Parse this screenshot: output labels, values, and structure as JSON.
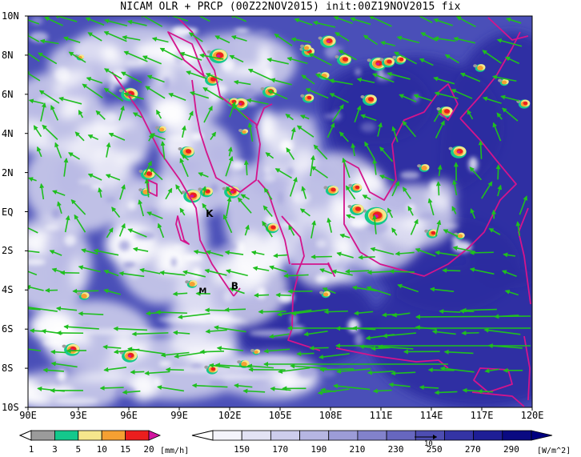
{
  "title": "NICAM OLR + PRCP (00Z22NOV2015) init:00Z19NOV2015 fix",
  "map": {
    "lon_range": [
      90,
      120
    ],
    "lat_range": [
      -10,
      10
    ],
    "lat_labels": [
      "10N",
      "8N",
      "6N",
      "4N",
      "2N",
      "EQ",
      "2S",
      "4S",
      "6S",
      "8S",
      "10S"
    ],
    "lon_labels": [
      "90E",
      "93E",
      "96E",
      "99E",
      "102E",
      "105E",
      "108E",
      "111E",
      "114E",
      "117E",
      "120E"
    ],
    "station_markers": [
      {
        "label": "K",
        "lon": 100.8,
        "lat": -0.1
      },
      {
        "label": "B",
        "lon": 102.3,
        "lat": -3.8
      },
      {
        "label": "M",
        "lon": 100.4,
        "lat": -4.0
      }
    ],
    "olr_background_color": "#4a4fb8",
    "coastline_color": "#d4148c",
    "wind_arrow_color": "#1fbf1f"
  },
  "precip_colorbar": {
    "labels": [
      "1",
      "3",
      "5",
      "10",
      "15",
      "20"
    ],
    "unit": "[mm/h]",
    "colors": [
      "#9b9b9b",
      "#14c88c",
      "#f5e68c",
      "#f5a032",
      "#eb1e1e",
      "#d214a0"
    ]
  },
  "olr_colorbar": {
    "labels": [
      "150",
      "170",
      "190",
      "210",
      "230",
      "250",
      "270",
      "290"
    ],
    "unit": "[W/m^2]",
    "colors": [
      "#f4f4fb",
      "#e2e2f4",
      "#cdcdec",
      "#b6b6e2",
      "#9c9cd7",
      "#8282cb",
      "#6767bf",
      "#4d4db2",
      "#3434a5",
      "#1e1e96",
      "#0a0a82"
    ],
    "vector_scale_label": "10"
  }
}
